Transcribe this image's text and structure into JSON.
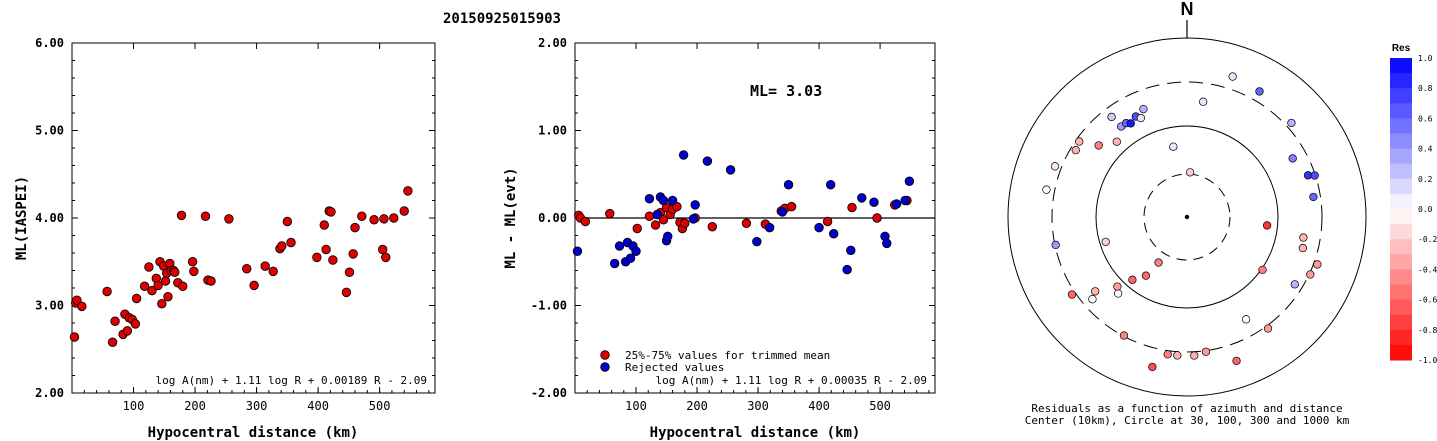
{
  "header": {
    "event_id": "20150925015903"
  },
  "left_plot": {
    "ylabel": "ML(IASPEI)",
    "xlabel": "Hypocentral distance (km)",
    "formula": "log A(nm) + 1.11 log R + 0.00189 R - 2.09",
    "x_ticks": [
      "100",
      "200",
      "300",
      "400",
      "500"
    ],
    "y_ticks": [
      "2.00",
      "3.00",
      "4.00",
      "5.00",
      "6.00"
    ]
  },
  "middle_plot": {
    "ylabel": "ML - ML(evt)",
    "xlabel": "Hypocentral distance (km)",
    "ml_label": "ML= 3.03",
    "formula": "log A(nm) + 1.11 log R + 0.00035 R - 2.09",
    "legend": [
      "25%-75% values for trimmed mean",
      "Rejected values"
    ],
    "x_ticks": [
      "100",
      "200",
      "300",
      "400",
      "500"
    ],
    "y_ticks": [
      "-2.00",
      "-1.00",
      "0.00",
      "1.00",
      "2.00"
    ]
  },
  "right_plot": {
    "north_label": "N",
    "caption_line1": "Residuals as a function of azimuth and distance",
    "caption_line2": "Center (10km), Circle at 30, 100, 300 and 1000 km",
    "colorbar_title": "Res",
    "colorbar_ticks": [
      "1.0",
      "0.8",
      "0.6",
      "0.4",
      "0.2",
      "0.0",
      "-0.2",
      "-0.4",
      "-0.6",
      "-0.8",
      "-1.0"
    ]
  },
  "colors": {
    "trimmed": "#dd0000",
    "rejected": "#0000cc"
  },
  "chart_data": [
    {
      "type": "scatter",
      "title": "20150925015903",
      "xlabel": "Hypocentral distance (km)",
      "ylabel": "ML(IASPEI)",
      "xlim": [
        0,
        590
      ],
      "ylim": [
        2.0,
        6.0
      ],
      "points": [
        [
          4,
          2.64
        ],
        [
          6,
          3.03
        ],
        [
          8,
          3.06
        ],
        [
          16,
          2.99
        ],
        [
          57,
          3.16
        ],
        [
          66,
          2.58
        ],
        [
          70,
          2.82
        ],
        [
          83,
          2.67
        ],
        [
          86,
          2.9
        ],
        [
          90,
          2.71
        ],
        [
          93,
          2.86
        ],
        [
          98,
          2.84
        ],
        [
          103,
          2.79
        ],
        [
          105,
          3.08
        ],
        [
          118,
          3.22
        ],
        [
          125,
          3.44
        ],
        [
          130,
          3.17
        ],
        [
          137,
          3.31
        ],
        [
          140,
          3.23
        ],
        [
          143,
          3.5
        ],
        [
          146,
          3.02
        ],
        [
          149,
          3.45
        ],
        [
          152,
          3.28
        ],
        [
          154,
          3.37
        ],
        [
          156,
          3.1
        ],
        [
          159,
          3.48
        ],
        [
          161,
          3.4
        ],
        [
          165,
          3.4
        ],
        [
          167,
          3.38
        ],
        [
          172,
          3.26
        ],
        [
          178,
          4.03
        ],
        [
          180,
          3.22
        ],
        [
          196,
          3.5
        ],
        [
          198,
          3.39
        ],
        [
          217,
          4.02
        ],
        [
          221,
          3.29
        ],
        [
          226,
          3.28
        ],
        [
          255,
          3.99
        ],
        [
          284,
          3.42
        ],
        [
          296,
          3.23
        ],
        [
          314,
          3.45
        ],
        [
          327,
          3.39
        ],
        [
          338,
          3.65
        ],
        [
          341,
          3.68
        ],
        [
          350,
          3.96
        ],
        [
          356,
          3.72
        ],
        [
          398,
          3.55
        ],
        [
          410,
          3.92
        ],
        [
          413,
          3.64
        ],
        [
          418,
          4.08
        ],
        [
          421,
          4.07
        ],
        [
          424,
          3.52
        ],
        [
          446,
          3.15
        ],
        [
          451,
          3.38
        ],
        [
          457,
          3.59
        ],
        [
          460,
          3.89
        ],
        [
          471,
          4.02
        ],
        [
          491,
          3.98
        ],
        [
          505,
          3.64
        ],
        [
          507,
          3.99
        ],
        [
          510,
          3.55
        ],
        [
          523,
          4.0
        ],
        [
          540,
          4.08
        ],
        [
          546,
          4.31
        ]
      ]
    },
    {
      "type": "scatter",
      "title": "ML= 3.03",
      "xlabel": "Hypocentral distance (km)",
      "ylabel": "ML - ML(evt)",
      "xlim": [
        0,
        590
      ],
      "ylim": [
        -2.0,
        2.0
      ],
      "reference_line": 0.0,
      "series": [
        {
          "name": "25%-75% values for trimmed mean",
          "points": [
            [
              6,
              0.03
            ],
            [
              9,
              0.0
            ],
            [
              17,
              -0.04
            ],
            [
              57,
              0.05
            ],
            [
              102,
              -0.12
            ],
            [
              122,
              0.02
            ],
            [
              132,
              -0.08
            ],
            [
              140,
              0.06
            ],
            [
              145,
              -0.02
            ],
            [
              150,
              0.12
            ],
            [
              156,
              0.04
            ],
            [
              160,
              0.1
            ],
            [
              167,
              0.13
            ],
            [
              172,
              -0.05
            ],
            [
              176,
              -0.12
            ],
            [
              180,
              -0.06
            ],
            [
              197,
              0.0
            ],
            [
              225,
              -0.1
            ],
            [
              281,
              -0.06
            ],
            [
              312,
              -0.07
            ],
            [
              338,
              0.08
            ],
            [
              344,
              0.11
            ],
            [
              355,
              0.13
            ],
            [
              414,
              -0.04
            ],
            [
              454,
              0.12
            ],
            [
              495,
              0.0
            ],
            [
              524,
              0.15
            ],
            [
              544,
              0.2
            ]
          ]
        },
        {
          "name": "Rejected values",
          "points": [
            [
              4,
              -0.38
            ],
            [
              65,
              -0.52
            ],
            [
              73,
              -0.32
            ],
            [
              83,
              -0.5
            ],
            [
              86,
              -0.28
            ],
            [
              91,
              -0.46
            ],
            [
              95,
              -0.32
            ],
            [
              100,
              -0.38
            ],
            [
              122,
              0.22
            ],
            [
              135,
              0.04
            ],
            [
              140,
              0.24
            ],
            [
              145,
              0.2
            ],
            [
              150,
              -0.26
            ],
            [
              152,
              -0.21
            ],
            [
              160,
              0.2
            ],
            [
              178,
              0.72
            ],
            [
              194,
              -0.01
            ],
            [
              197,
              0.15
            ],
            [
              217,
              0.65
            ],
            [
              255,
              0.55
            ],
            [
              298,
              -0.27
            ],
            [
              319,
              -0.11
            ],
            [
              340,
              0.07
            ],
            [
              350,
              0.38
            ],
            [
              400,
              -0.11
            ],
            [
              419,
              0.38
            ],
            [
              424,
              -0.18
            ],
            [
              446,
              -0.59
            ],
            [
              452,
              -0.37
            ],
            [
              470,
              0.23
            ],
            [
              490,
              0.18
            ],
            [
              508,
              -0.21
            ],
            [
              511,
              -0.29
            ],
            [
              527,
              0.16
            ],
            [
              541,
              0.2
            ],
            [
              548,
              0.42
            ]
          ]
        }
      ]
    },
    {
      "type": "scatter",
      "title": "Residuals as a function of azimuth and distance",
      "subtitle": "Center (10km), Circle at 30, 100, 300 and 1000 km",
      "coordinate_system": "polar",
      "value_label": "Res",
      "colorbar_range": [
        -1.0,
        1.0
      ],
      "points_az_r_res": [
        [
          4,
          0.5,
          -0.2
        ],
        [
          349,
          0.8,
          0.1
        ],
        [
          8,
          1.3,
          0.1
        ],
        [
          18,
          1.65,
          0.1
        ],
        [
          30,
          1.62,
          0.6
        ],
        [
          48,
          1.57,
          0.3
        ],
        [
          61,
          1.35,
          0.5
        ],
        [
          71,
          1.43,
          0.8
        ],
        [
          72,
          1.5,
          0.7
        ],
        [
          81,
          1.43,
          0.6
        ],
        [
          96,
          0.9,
          -0.8
        ],
        [
          100,
          1.32,
          -0.3
        ],
        [
          105,
          1.34,
          -0.3
        ],
        [
          110,
          1.55,
          -0.4
        ],
        [
          115,
          1.52,
          -0.4
        ],
        [
          122,
          1.42,
          0.3
        ],
        [
          125,
          1.03,
          -0.5
        ],
        [
          144,
          1.54,
          -0.4
        ],
        [
          150,
          1.32,
          0.0
        ],
        [
          161,
          1.7,
          -0.6
        ],
        [
          172,
          1.52,
          -0.4
        ],
        [
          177,
          1.55,
          -0.3
        ],
        [
          184,
          1.55,
          -0.3
        ],
        [
          188,
          1.55,
          -0.5
        ],
        [
          193,
          1.72,
          -0.7
        ],
        [
          208,
          1.5,
          -0.5
        ],
        [
          212,
          0.6,
          -0.5
        ],
        [
          215,
          0.8,
          -0.6
        ],
        [
          221,
          0.93,
          -0.6
        ],
        [
          222,
          1.15,
          0.0
        ],
        [
          225,
          1.1,
          -0.4
        ],
        [
          229,
          1.4,
          0.0
        ],
        [
          231,
          1.32,
          -0.3
        ],
        [
          236,
          1.55,
          -0.6
        ],
        [
          253,
          0.95,
          -0.2
        ],
        [
          258,
          1.5,
          0.4
        ],
        [
          281,
          1.6,
          0.0
        ],
        [
          291,
          1.58,
          -0.1
        ],
        [
          301,
          1.45,
          -0.3
        ],
        [
          305,
          1.47,
          -0.3
        ],
        [
          309,
          1.27,
          -0.5
        ],
        [
          317,
          1.15,
          -0.3
        ],
        [
          323,
          1.4,
          0.2
        ],
        [
          324,
          1.25,
          0.4
        ],
        [
          327,
          1.25,
          0.6
        ],
        [
          329,
          1.22,
          0.9
        ],
        [
          333,
          1.26,
          0.7
        ],
        [
          335,
          1.22,
          0.1
        ],
        [
          338,
          1.3,
          0.3
        ]
      ]
    }
  ]
}
